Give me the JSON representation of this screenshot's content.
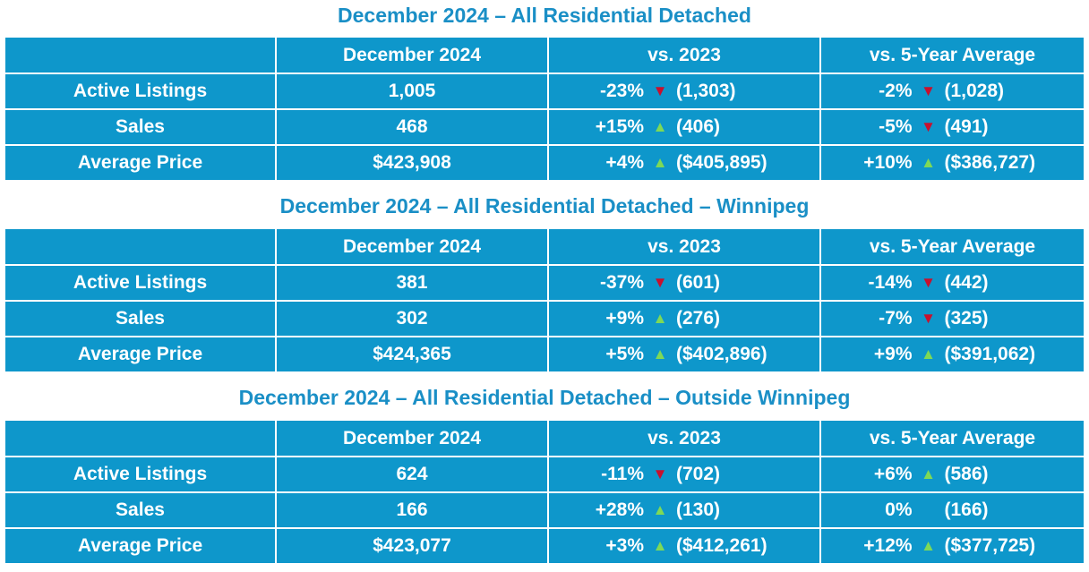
{
  "colors": {
    "title": "#1a8fc6",
    "table_bg": "#0e97cb",
    "up_arrow": "#7ed957",
    "down_arrow": "#c8102e"
  },
  "arrows": {
    "up": "▲",
    "down": "▼",
    "flat": ""
  },
  "sections": [
    {
      "title": "December 2024 – All Residential Detached",
      "headers": [
        "",
        "December 2024",
        "vs. 2023",
        "vs. 5-Year Average"
      ],
      "rows": [
        {
          "label": "Active Listings",
          "value": "1,005",
          "vs_prev_year": {
            "pct": "-23%",
            "dir": "down",
            "prev": "(1,303)"
          },
          "vs_5yr": {
            "pct": "-2%",
            "dir": "down",
            "prev": "(1,028)"
          }
        },
        {
          "label": "Sales",
          "value": "468",
          "vs_prev_year": {
            "pct": "+15%",
            "dir": "up",
            "prev": "(406)"
          },
          "vs_5yr": {
            "pct": "-5%",
            "dir": "down",
            "prev": "(491)"
          }
        },
        {
          "label": "Average Price",
          "value": "$423,908",
          "vs_prev_year": {
            "pct": "+4%",
            "dir": "up",
            "prev": "($405,895)"
          },
          "vs_5yr": {
            "pct": "+10%",
            "dir": "up",
            "prev": "($386,727)"
          }
        }
      ]
    },
    {
      "title": "December 2024 – All Residential Detached – Winnipeg",
      "headers": [
        "",
        "December 2024",
        "vs. 2023",
        "vs. 5-Year Average"
      ],
      "rows": [
        {
          "label": "Active Listings",
          "value": "381",
          "vs_prev_year": {
            "pct": "-37%",
            "dir": "down",
            "prev": "(601)"
          },
          "vs_5yr": {
            "pct": "-14%",
            "dir": "down",
            "prev": "(442)"
          }
        },
        {
          "label": "Sales",
          "value": "302",
          "vs_prev_year": {
            "pct": "+9%",
            "dir": "up",
            "prev": "(276)"
          },
          "vs_5yr": {
            "pct": "-7%",
            "dir": "down",
            "prev": "(325)"
          }
        },
        {
          "label": "Average Price",
          "value": "$424,365",
          "vs_prev_year": {
            "pct": "+5%",
            "dir": "up",
            "prev": "($402,896)"
          },
          "vs_5yr": {
            "pct": "+9%",
            "dir": "up",
            "prev": "($391,062)"
          }
        }
      ]
    },
    {
      "title": "December 2024 – All Residential Detached – Outside Winnipeg",
      "headers": [
        "",
        "December 2024",
        "vs. 2023",
        "vs. 5-Year Average"
      ],
      "rows": [
        {
          "label": "Active Listings",
          "value": "624",
          "vs_prev_year": {
            "pct": "-11%",
            "dir": "down",
            "prev": "(702)"
          },
          "vs_5yr": {
            "pct": "+6%",
            "dir": "up",
            "prev": "(586)"
          }
        },
        {
          "label": "Sales",
          "value": "166",
          "vs_prev_year": {
            "pct": "+28%",
            "dir": "up",
            "prev": "(130)"
          },
          "vs_5yr": {
            "pct": "0%",
            "dir": "flat",
            "prev": "(166)"
          }
        },
        {
          "label": "Average Price",
          "value": "$423,077",
          "vs_prev_year": {
            "pct": "+3%",
            "dir": "up",
            "prev": "($412,261)"
          },
          "vs_5yr": {
            "pct": "+12%",
            "dir": "up",
            "prev": "($377,725)"
          }
        }
      ]
    }
  ]
}
